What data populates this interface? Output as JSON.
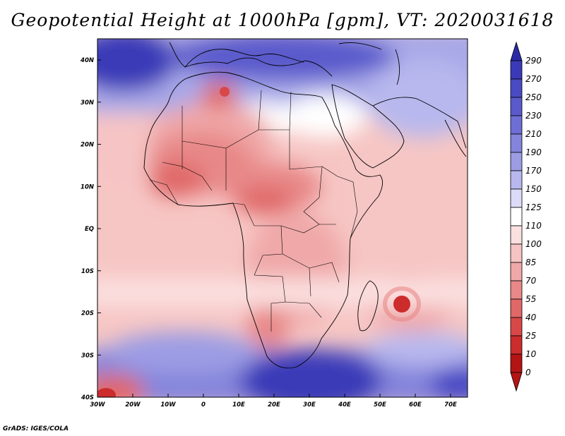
{
  "title": "Geopotential Height at 1000hPa [gpm], VT: 2020031618",
  "credit": "GrADS: IGES/COLA",
  "map": {
    "lat_labels": [
      "40N",
      "30N",
      "20N",
      "10N",
      "EQ",
      "10S",
      "20S",
      "30S",
      "40S"
    ],
    "lon_labels": [
      "30W",
      "20W",
      "10W",
      "0",
      "10E",
      "20E",
      "30E",
      "40E",
      "50E",
      "60E",
      "70E"
    ]
  },
  "colorbar": {
    "levels": [
      "290",
      "270",
      "250",
      "230",
      "210",
      "190",
      "170",
      "150",
      "125",
      "110",
      "100",
      "85",
      "70",
      "55",
      "40",
      "25",
      "10",
      "0"
    ],
    "colors": [
      "#2a2aa8",
      "#3a3ab8",
      "#4a4ac4",
      "#5a5acc",
      "#6e6ed4",
      "#8484dc",
      "#9c9ce4",
      "#b8b8ee",
      "#dcdcf8",
      "#ffffff",
      "#fbe0e0",
      "#f6c4c4",
      "#f0a8a8",
      "#e88888",
      "#e06868",
      "#d84848",
      "#cc2c2c",
      "#b41414"
    ]
  }
}
